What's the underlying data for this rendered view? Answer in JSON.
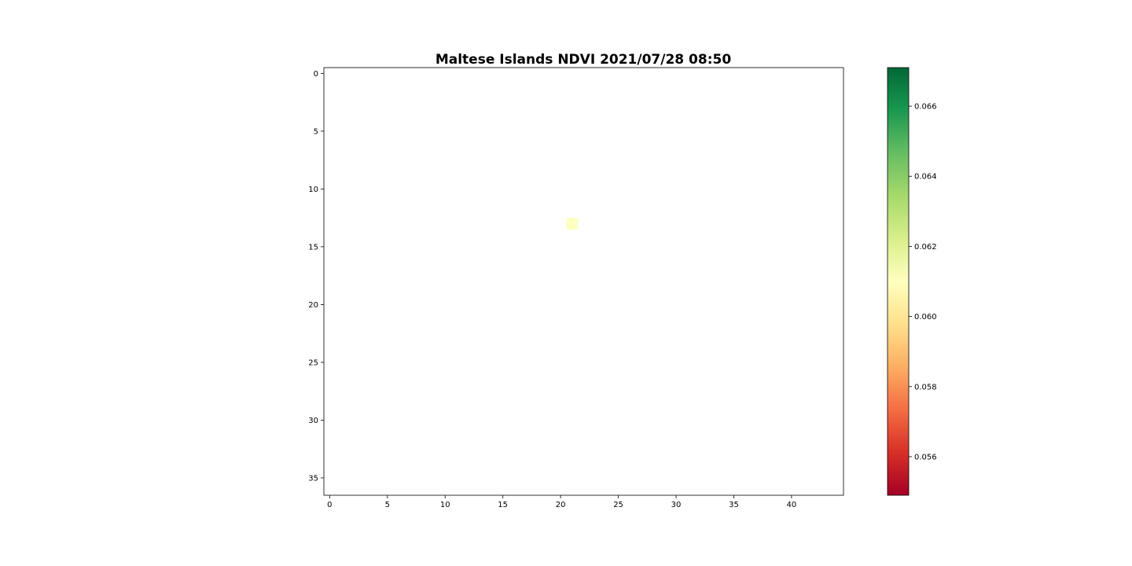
{
  "chart_data": {
    "type": "heatmap",
    "title": "Maltese Islands NDVI 2021/07/28 08:50",
    "xlabel": "",
    "ylabel": "",
    "x_ticks": [
      0,
      5,
      10,
      15,
      20,
      25,
      30,
      35,
      40
    ],
    "y_ticks": [
      0,
      5,
      10,
      15,
      20,
      25,
      30,
      35
    ],
    "xlim": [
      -0.5,
      44.5
    ],
    "ylim": [
      36.5,
      -0.5
    ],
    "y_inverted": true,
    "grid": false,
    "colormap": "RdYlGn",
    "colorbar": {
      "min": 0.0549,
      "max": 0.0671,
      "ticks": [
        0.056,
        0.058,
        0.06,
        0.062,
        0.064,
        0.066
      ],
      "tick_labels": [
        "0.056",
        "0.058",
        "0.060",
        "0.062",
        "0.064",
        "0.066"
      ],
      "colors": [
        "#a50026",
        "#d73027",
        "#f46d43",
        "#fdae61",
        "#fee08b",
        "#ffffbf",
        "#d9ef8b",
        "#a6d96a",
        "#66bd63",
        "#1a9850",
        "#006837"
      ]
    },
    "cells": [
      {
        "row": 13,
        "col": 21,
        "value": 0.061
      }
    ],
    "no_data_color": "#ffffff"
  }
}
